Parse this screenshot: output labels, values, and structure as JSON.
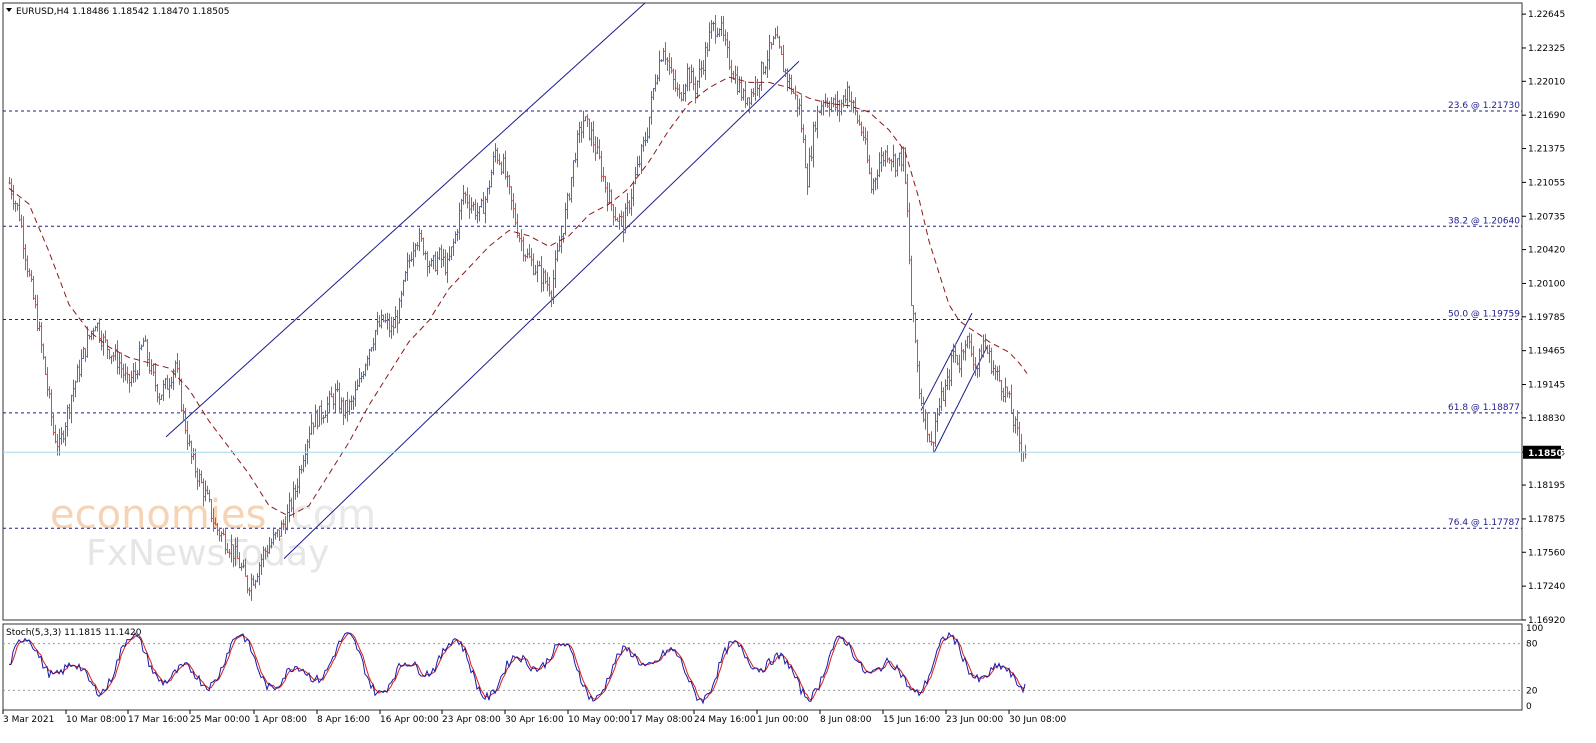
{
  "chart_data": {
    "type": "candlestick",
    "symbol_header": "EURUSD,H4  1.18486 1.18542 1.18470 1.18505",
    "last_price": "1.18505",
    "ylim": [
      1.1692,
      1.2275
    ],
    "y_ticks": [
      "1.22645",
      "1.22325",
      "1.22010",
      "1.21690",
      "1.21375",
      "1.21055",
      "1.20735",
      "1.20420",
      "1.20100",
      "1.19785",
      "1.19465",
      "1.19145",
      "1.18830",
      "1.18505",
      "1.18195",
      "1.17875",
      "1.17560",
      "1.17240",
      "1.16920"
    ],
    "x_labels": [
      "3 Mar 2021",
      "10 Mar 08:00",
      "17 Mar 16:00",
      "25 Mar 00:00",
      "1 Apr 08:00",
      "8 Apr 16:00",
      "16 Apr 00:00",
      "23 Apr 08:00",
      "30 Apr 16:00",
      "10 May 00:00",
      "17 May 08:00",
      "24 May 16:00",
      "1 Jun 00:00",
      "8 Jun 08:00",
      "15 Jun 16:00",
      "23 Jun 00:00",
      "30 Jun 08:00"
    ],
    "fib_levels": [
      {
        "label": "23.6 @ 1.21730",
        "value": 1.2173
      },
      {
        "label": "38.2 @ 1.20640",
        "value": 1.2064
      },
      {
        "label": "50.0 @ 1.19759",
        "value": 1.19759
      },
      {
        "label": "61.8 @ 1.18877",
        "value": 1.18877
      },
      {
        "label": "76.4 @ 1.17787",
        "value": 1.17787
      }
    ],
    "price_path": [
      [
        0,
        1.2105
      ],
      [
        10,
        1.2075
      ],
      [
        20,
        1.2015
      ],
      [
        28,
        1.1975
      ],
      [
        36,
        1.1925
      ],
      [
        44,
        1.187
      ],
      [
        50,
        1.1855
      ],
      [
        56,
        1.188
      ],
      [
        62,
        1.1905
      ],
      [
        70,
        1.193
      ],
      [
        78,
        1.1955
      ],
      [
        86,
        1.1975
      ],
      [
        94,
        1.1955
      ],
      [
        102,
        1.1945
      ],
      [
        110,
        1.1935
      ],
      [
        118,
        1.1915
      ],
      [
        126,
        1.1925
      ],
      [
        134,
        1.1955
      ],
      [
        142,
        1.1925
      ],
      [
        150,
        1.1905
      ],
      [
        158,
        1.1915
      ],
      [
        166,
        1.1935
      ],
      [
        174,
        1.1885
      ],
      [
        182,
        1.1845
      ],
      [
        190,
        1.1825
      ],
      [
        198,
        1.1805
      ],
      [
        206,
        1.178
      ],
      [
        214,
        1.177
      ],
      [
        222,
        1.176
      ],
      [
        230,
        1.1745
      ],
      [
        238,
        1.1725
      ],
      [
        246,
        1.1735
      ],
      [
        254,
        1.1755
      ],
      [
        262,
        1.1765
      ],
      [
        270,
        1.1775
      ],
      [
        278,
        1.179
      ],
      [
        286,
        1.1815
      ],
      [
        294,
        1.185
      ],
      [
        302,
        1.188
      ],
      [
        310,
        1.1885
      ],
      [
        318,
        1.1895
      ],
      [
        326,
        1.1905
      ],
      [
        334,
        1.189
      ],
      [
        342,
        1.1895
      ],
      [
        350,
        1.1915
      ],
      [
        358,
        1.1945
      ],
      [
        366,
        1.1965
      ],
      [
        374,
        1.1975
      ],
      [
        382,
        1.1965
      ],
      [
        390,
        1.1985
      ],
      [
        398,
        1.2025
      ],
      [
        406,
        1.2055
      ],
      [
        414,
        1.2045
      ],
      [
        422,
        1.2025
      ],
      [
        430,
        1.2035
      ],
      [
        438,
        1.2025
      ],
      [
        446,
        1.2055
      ],
      [
        454,
        1.2095
      ],
      [
        462,
        1.2085
      ],
      [
        470,
        1.2075
      ],
      [
        478,
        1.2095
      ],
      [
        486,
        1.2135
      ],
      [
        494,
        1.212
      ],
      [
        502,
        1.2085
      ],
      [
        510,
        1.2055
      ],
      [
        518,
        1.2035
      ],
      [
        526,
        1.2025
      ],
      [
        534,
        1.2015
      ],
      [
        542,
        1.2005
      ],
      [
        550,
        1.2045
      ],
      [
        558,
        1.2085
      ],
      [
        566,
        1.2135
      ],
      [
        574,
        1.2165
      ],
      [
        582,
        1.215
      ],
      [
        590,
        1.2125
      ],
      [
        598,
        1.2095
      ],
      [
        606,
        1.2075
      ],
      [
        614,
        1.2065
      ],
      [
        622,
        1.2095
      ],
      [
        630,
        1.2125
      ],
      [
        638,
        1.2155
      ],
      [
        646,
        1.2205
      ],
      [
        654,
        1.2235
      ],
      [
        662,
        1.2205
      ],
      [
        670,
        1.2185
      ],
      [
        678,
        1.221
      ],
      [
        686,
        1.2195
      ],
      [
        694,
        1.222
      ],
      [
        702,
        1.225
      ],
      [
        710,
        1.2255
      ],
      [
        718,
        1.2225
      ],
      [
        726,
        1.2205
      ],
      [
        734,
        1.2185
      ],
      [
        742,
        1.219
      ],
      [
        750,
        1.2205
      ],
      [
        758,
        1.2225
      ],
      [
        766,
        1.224
      ],
      [
        774,
        1.2215
      ],
      [
        782,
        1.2195
      ],
      [
        790,
        1.2175
      ],
      [
        798,
        1.211
      ],
      [
        806,
        1.2165
      ],
      [
        814,
        1.2185
      ],
      [
        822,
        1.218
      ],
      [
        830,
        1.2175
      ],
      [
        838,
        1.2195
      ],
      [
        846,
        1.217
      ],
      [
        854,
        1.215
      ],
      [
        862,
        1.21
      ],
      [
        870,
        1.2125
      ],
      [
        878,
        1.2135
      ],
      [
        886,
        1.2125
      ],
      [
        894,
        1.213
      ],
      [
        898,
        1.2075
      ],
      [
        902,
        1.199
      ],
      [
        906,
        1.1955
      ],
      [
        910,
        1.191
      ],
      [
        914,
        1.189
      ],
      [
        918,
        1.1875
      ],
      [
        922,
        1.1855
      ],
      [
        926,
        1.188
      ],
      [
        932,
        1.19
      ],
      [
        938,
        1.1915
      ],
      [
        944,
        1.1945
      ],
      [
        950,
        1.1935
      ],
      [
        956,
        1.196
      ],
      [
        962,
        1.1945
      ],
      [
        968,
        1.193
      ],
      [
        974,
        1.1955
      ],
      [
        980,
        1.194
      ],
      [
        986,
        1.1925
      ],
      [
        992,
        1.1915
      ],
      [
        998,
        1.1905
      ],
      [
        1004,
        1.188
      ],
      [
        1010,
        1.186
      ],
      [
        1016,
        1.1851
      ]
    ],
    "ma_path": [
      [
        0,
        1.21
      ],
      [
        20,
        1.2085
      ],
      [
        40,
        1.204
      ],
      [
        60,
        1.199
      ],
      [
        80,
        1.1965
      ],
      [
        100,
        1.195
      ],
      [
        120,
        1.194
      ],
      [
        140,
        1.1935
      ],
      [
        160,
        1.193
      ],
      [
        180,
        1.191
      ],
      [
        200,
        1.188
      ],
      [
        220,
        1.1855
      ],
      [
        240,
        1.183
      ],
      [
        260,
        1.18
      ],
      [
        280,
        1.179
      ],
      [
        300,
        1.18
      ],
      [
        320,
        1.183
      ],
      [
        340,
        1.186
      ],
      [
        360,
        1.1895
      ],
      [
        380,
        1.1925
      ],
      [
        400,
        1.1955
      ],
      [
        420,
        1.1975
      ],
      [
        440,
        1.2005
      ],
      [
        460,
        1.2025
      ],
      [
        480,
        1.2045
      ],
      [
        500,
        1.206
      ],
      [
        520,
        1.2055
      ],
      [
        540,
        1.2045
      ],
      [
        560,
        1.2055
      ],
      [
        580,
        1.2075
      ],
      [
        600,
        1.2085
      ],
      [
        620,
        1.21
      ],
      [
        640,
        1.2125
      ],
      [
        660,
        1.2155
      ],
      [
        680,
        1.218
      ],
      [
        700,
        1.2195
      ],
      [
        720,
        1.2205
      ],
      [
        740,
        1.22
      ],
      [
        760,
        1.22
      ],
      [
        780,
        1.2195
      ],
      [
        800,
        1.2185
      ],
      [
        820,
        1.218
      ],
      [
        840,
        1.2178
      ],
      [
        860,
        1.2172
      ],
      [
        880,
        1.2155
      ],
      [
        896,
        1.2135
      ],
      [
        910,
        1.209
      ],
      [
        920,
        1.205
      ],
      [
        930,
        1.202
      ],
      [
        940,
        1.199
      ],
      [
        950,
        1.1975
      ],
      [
        960,
        1.1968
      ],
      [
        970,
        1.1962
      ],
      [
        980,
        1.1955
      ],
      [
        990,
        1.195
      ],
      [
        1000,
        1.1945
      ],
      [
        1010,
        1.1935
      ],
      [
        1018,
        1.1925
      ]
    ],
    "trendlines": [
      {
        "from": [
          157,
          1.1865
        ],
        "to": [
          636,
          1.2275
        ]
      },
      {
        "from": [
          275,
          1.175
        ],
        "to": [
          790,
          1.222
        ]
      },
      {
        "from": [
          912,
          1.189
        ],
        "to": [
          963,
          1.1982
        ]
      },
      {
        "from": [
          925,
          1.185
        ],
        "to": [
          978,
          1.195
        ]
      }
    ],
    "stochastic": {
      "header": "Stoch(5,3,3) 11.1815 11.1420",
      "ylim": [
        0,
        100
      ],
      "y_ticks": [
        "100",
        "80",
        "20",
        "0"
      ],
      "levels": [
        80,
        20
      ]
    }
  },
  "watermark": {
    "line1": "economies",
    "line1_suffix": ".com",
    "line2": "FxNewsToday"
  },
  "colors": {
    "bull": "#4a6fb0",
    "bear": "#e8453c",
    "ma": "#8b1a1a",
    "trend": "#1e1e8c",
    "fib": "#1c1c8c",
    "last_price_line": "#a6d8ea",
    "stoch_main": "#1a1aa8",
    "stoch_signal": "#d62020"
  }
}
